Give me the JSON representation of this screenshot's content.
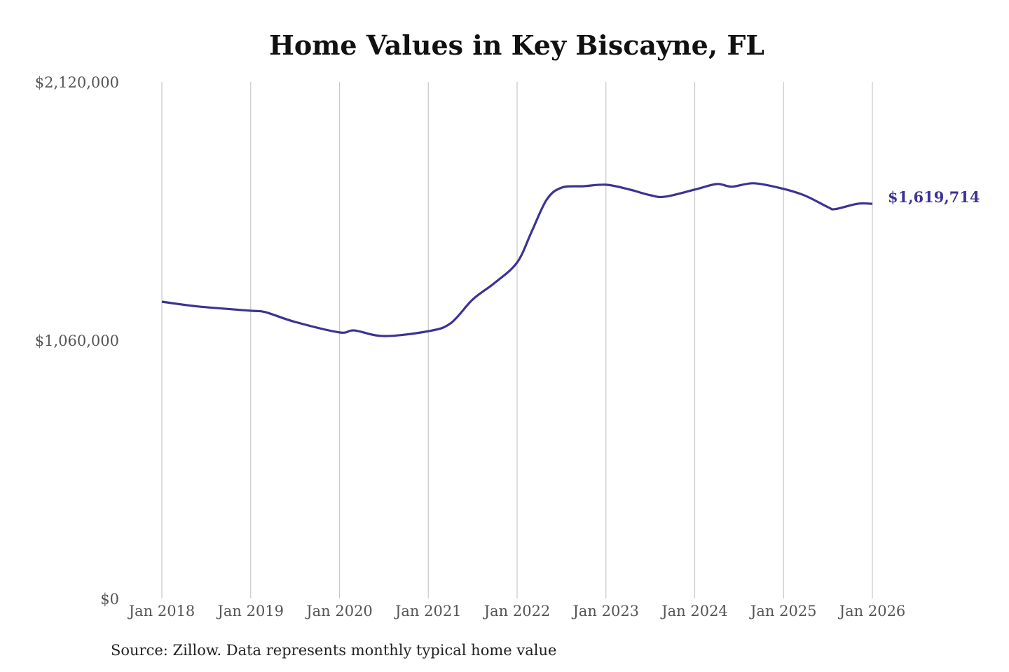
{
  "chart_data": {
    "type": "line",
    "title": "Home Values in Key Biscayne, FL",
    "source": "Source: Zillow. Data represents monthly typical home value",
    "ylim": [
      0,
      2120000
    ],
    "y_ticks": [
      0,
      1060000,
      2120000
    ],
    "y_tick_labels": [
      "$0",
      "$1,060,000",
      "$2,120,000"
    ],
    "x_ticks": [
      "2018-01",
      "2019-01",
      "2020-01",
      "2021-01",
      "2022-01",
      "2023-01",
      "2024-01",
      "2025-01",
      "2026-01"
    ],
    "x_tick_labels": [
      "Jan 2018",
      "Jan 2019",
      "Jan 2020",
      "Jan 2021",
      "Jan 2022",
      "Jan 2023",
      "Jan 2024",
      "Jan 2025",
      "Jan 2026"
    ],
    "grid": "vertical",
    "line_color": "#3b3394",
    "end_label": "$1,619,714",
    "series": [
      {
        "x": [
          "2018-01",
          "2018-06",
          "2019-01",
          "2019-03",
          "2019-07",
          "2020-01",
          "2020-03",
          "2020-07",
          "2021-01",
          "2021-04",
          "2021-07",
          "2021-10",
          "2022-01",
          "2022-03",
          "2022-05",
          "2022-07",
          "2022-10",
          "2023-01",
          "2023-04",
          "2023-07",
          "2023-09",
          "2024-01",
          "2024-04",
          "2024-06",
          "2024-09",
          "2025-01",
          "2025-04",
          "2025-07",
          "2025-08",
          "2025-11",
          "2026-01"
        ],
        "y": [
          1218000,
          1198000,
          1181000,
          1175000,
          1135000,
          1092000,
          1100000,
          1077000,
          1097000,
          1129000,
          1227000,
          1296000,
          1379000,
          1508000,
          1637000,
          1686000,
          1692000,
          1698000,
          1680000,
          1655000,
          1649000,
          1678000,
          1701000,
          1690000,
          1704000,
          1681000,
          1652000,
          1606000,
          1598000,
          1620000,
          1619714
        ]
      }
    ]
  }
}
